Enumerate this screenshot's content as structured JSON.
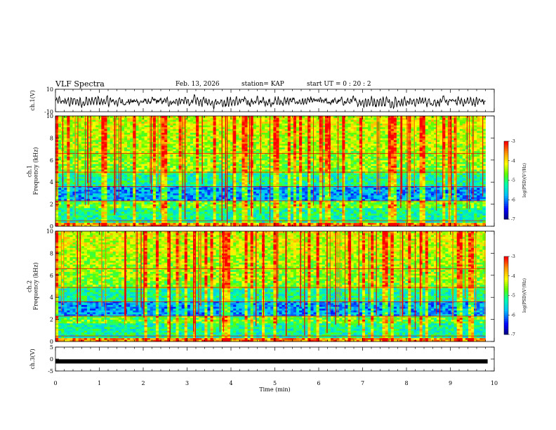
{
  "header": {
    "title": "VLF Spectra",
    "date": "Feb. 13, 2026",
    "station": "station= KAP",
    "start": "start  UT =   0 : 20 : 2"
  },
  "chart_data": [
    {
      "type": "line",
      "ylabel": "ch.1(V)",
      "ylim": [
        -10,
        10
      ],
      "yticks": [
        "10",
        "-10"
      ],
      "xlim": [
        0,
        10
      ]
    },
    {
      "type": "heatmap",
      "ylabel": "ch.1\nFrequency (kHz)",
      "ylabel_lines": [
        "ch.1",
        "Frequency (kHz)"
      ],
      "ylim": [
        0,
        10
      ],
      "yticks": [
        "0",
        "2",
        "4",
        "6",
        "8",
        "10"
      ],
      "xlim": [
        0,
        10
      ],
      "colorbar": {
        "label": "log(PSD)(V²/Hz)",
        "range": [
          -7,
          -3
        ],
        "ticks": [
          "-3",
          "-4",
          "-5",
          "-6",
          "-7"
        ]
      }
    },
    {
      "type": "heatmap",
      "ylabel": "ch.2\nFrequency (kHz)",
      "ylabel_lines": [
        "ch.2",
        "Frequency (kHz)"
      ],
      "ylim": [
        0,
        10
      ],
      "yticks": [
        "0",
        "2",
        "4",
        "6",
        "8",
        "10"
      ],
      "xlim": [
        0,
        10
      ],
      "colorbar": {
        "label": "log(PSD)(V²/Hz)",
        "range": [
          -7,
          -3
        ],
        "ticks": [
          "-3",
          "-4",
          "-5",
          "-6",
          "-7"
        ]
      }
    },
    {
      "type": "line",
      "ylabel": "ch.3(V)",
      "ylim": [
        -5,
        5
      ],
      "yticks": [
        "5",
        "0",
        "-5"
      ],
      "xlim": [
        0,
        10
      ],
      "level": -1
    }
  ],
  "xaxis": {
    "label": "Time (min)",
    "ticks": [
      "0",
      "1",
      "2",
      "3",
      "4",
      "5",
      "6",
      "7",
      "8",
      "9",
      "10"
    ]
  }
}
